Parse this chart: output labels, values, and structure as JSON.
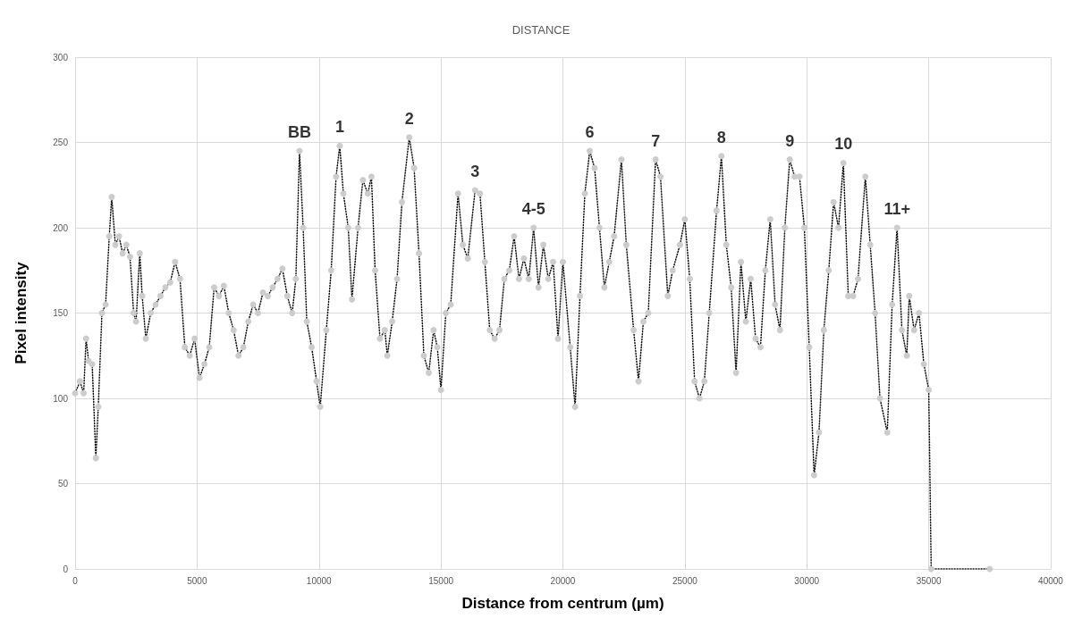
{
  "chart_data": {
    "type": "line",
    "title": "DISTANCE",
    "xlabel": "Distance from centrum (µm)",
    "ylabel": "Pixel intensity",
    "xlim": [
      0,
      40000
    ],
    "xticks": [
      0,
      5000,
      10000,
      15000,
      20000,
      25000,
      30000,
      35000,
      40000
    ],
    "ylim": [
      0,
      300
    ],
    "yticks": [
      0,
      50,
      100,
      150,
      200,
      250,
      300
    ],
    "grid": true,
    "marker": "circle",
    "line_style": "dotted",
    "series": [
      {
        "color": "#cccccc",
        "x": [
          0,
          200,
          350,
          450,
          550,
          700,
          850,
          950,
          1100,
          1250,
          1400,
          1500,
          1650,
          1800,
          1950,
          2100,
          2250,
          2400,
          2500,
          2650,
          2750,
          2900,
          3100,
          3300,
          3500,
          3700,
          3900,
          4100,
          4300,
          4500,
          4700,
          4900,
          5100,
          5300,
          5500,
          5700,
          5900,
          6100,
          6300,
          6500,
          6700,
          6900,
          7100,
          7300,
          7500,
          7700,
          7900,
          8100,
          8300,
          8500,
          8700,
          8900,
          9050,
          9200,
          9350,
          9500,
          9700,
          9900,
          10050,
          10300,
          10500,
          10700,
          10850,
          11000,
          11200,
          11350,
          11600,
          11800,
          12000,
          12150,
          12300,
          12500,
          12700,
          12800,
          13000,
          13200,
          13400,
          13700,
          13900,
          14100,
          14300,
          14500,
          14700,
          14850,
          15000,
          15200,
          15400,
          15700,
          15900,
          16100,
          16400,
          16600,
          16800,
          17000,
          17200,
          17400,
          17600,
          17800,
          18000,
          18200,
          18400,
          18600,
          18800,
          19000,
          19200,
          19400,
          19600,
          19800,
          20000,
          20300,
          20500,
          20700,
          20900,
          21100,
          21300,
          21500,
          21700,
          21900,
          22100,
          22400,
          22600,
          22900,
          23100,
          23300,
          23500,
          23800,
          24000,
          24300,
          24500,
          24800,
          25000,
          25200,
          25400,
          25600,
          25800,
          26000,
          26300,
          26500,
          26700,
          26900,
          27100,
          27300,
          27500,
          27700,
          27900,
          28100,
          28300,
          28500,
          28700,
          28900,
          29100,
          29300,
          29500,
          29700,
          29900,
          30100,
          30300,
          30500,
          30700,
          30900,
          31100,
          31300,
          31500,
          31700,
          31900,
          32100,
          32400,
          32600,
          32800,
          33000,
          33300,
          33500,
          33700,
          33900,
          34100,
          34200,
          34400,
          34600,
          34800,
          35000,
          35100,
          37500
        ],
        "values": [
          103,
          110,
          103,
          135,
          122,
          120,
          65,
          95,
          150,
          155,
          195,
          218,
          190,
          195,
          185,
          190,
          183,
          150,
          145,
          185,
          160,
          135,
          150,
          155,
          160,
          165,
          168,
          180,
          170,
          130,
          125,
          135,
          112,
          120,
          130,
          165,
          160,
          166,
          150,
          140,
          125,
          130,
          145,
          155,
          150,
          162,
          160,
          165,
          170,
          176,
          160,
          150,
          170,
          245,
          200,
          145,
          130,
          110,
          95,
          140,
          175,
          230,
          248,
          220,
          200,
          158,
          200,
          228,
          220,
          230,
          175,
          135,
          140,
          125,
          145,
          170,
          215,
          253,
          235,
          185,
          125,
          115,
          140,
          130,
          105,
          150,
          155,
          220,
          190,
          182,
          222,
          220,
          180,
          140,
          135,
          140,
          170,
          175,
          195,
          170,
          182,
          170,
          200,
          165,
          190,
          170,
          180,
          135,
          180,
          130,
          95,
          160,
          220,
          245,
          235,
          200,
          165,
          180,
          195,
          240,
          190,
          140,
          110,
          145,
          150,
          240,
          230,
          160,
          175,
          190,
          205,
          170,
          110,
          100,
          110,
          150,
          210,
          242,
          190,
          165,
          115,
          180,
          145,
          170,
          135,
          130,
          175,
          205,
          155,
          140,
          200,
          240,
          230,
          230,
          200,
          130,
          55,
          80,
          140,
          175,
          215,
          200,
          238,
          160,
          160,
          170,
          230,
          190,
          150,
          100,
          80,
          155,
          200,
          140,
          125,
          160,
          140,
          150,
          120,
          105,
          0,
          0
        ]
      }
    ],
    "annotations": [
      {
        "text": "BB",
        "x": 9200,
        "y": 245
      },
      {
        "text": "1",
        "x": 10850,
        "y": 248
      },
      {
        "text": "2",
        "x": 13700,
        "y": 253
      },
      {
        "text": "3",
        "x": 16400,
        "y": 222
      },
      {
        "text": "4-5",
        "x": 18800,
        "y": 200
      },
      {
        "text": "6",
        "x": 21100,
        "y": 245
      },
      {
        "text": "7",
        "x": 23800,
        "y": 240
      },
      {
        "text": "8",
        "x": 26500,
        "y": 242
      },
      {
        "text": "9",
        "x": 29300,
        "y": 240
      },
      {
        "text": "10",
        "x": 31500,
        "y": 238
      },
      {
        "text": "11+",
        "x": 33700,
        "y": 200
      }
    ]
  }
}
